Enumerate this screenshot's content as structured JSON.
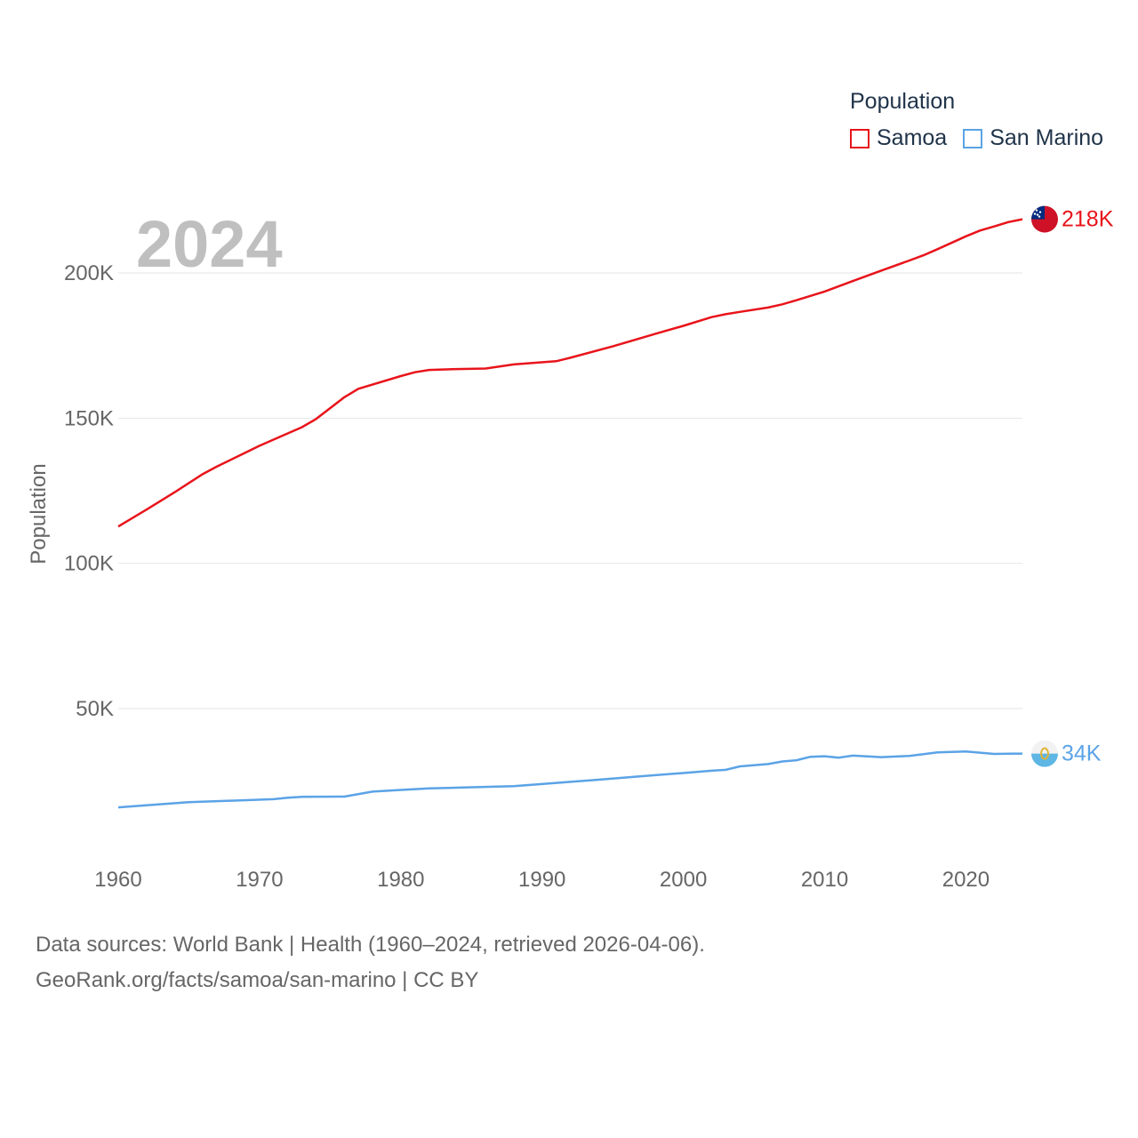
{
  "chart_data": {
    "type": "line",
    "ylabel": "Population",
    "year_label": "2024",
    "xlim": [
      1960,
      2024
    ],
    "ylim": [
      0,
      220000
    ],
    "x_ticks": [
      {
        "value": 1960,
        "label": "1960"
      },
      {
        "value": 1970,
        "label": "1970"
      },
      {
        "value": 1980,
        "label": "1980"
      },
      {
        "value": 1990,
        "label": "1990"
      },
      {
        "value": 2000,
        "label": "2000"
      },
      {
        "value": 2010,
        "label": "2010"
      },
      {
        "value": 2020,
        "label": "2020"
      }
    ],
    "y_ticks": [
      {
        "value": 50000,
        "label": "50K"
      },
      {
        "value": 100000,
        "label": "100K"
      },
      {
        "value": 150000,
        "label": "150K"
      },
      {
        "value": 200000,
        "label": "200K"
      }
    ],
    "legend": {
      "title": "Population",
      "items": [
        {
          "name": "Samoa",
          "color": "#e8141b"
        },
        {
          "name": "San Marino",
          "color": "#5ba3e6"
        }
      ]
    },
    "series": [
      {
        "name": "Samoa",
        "color": "#e8141b",
        "end_label": "218K",
        "flag": "samoa-flag",
        "points": [
          [
            1960,
            112700
          ],
          [
            1962,
            118500
          ],
          [
            1964,
            124500
          ],
          [
            1966,
            130800
          ],
          [
            1967,
            133400
          ],
          [
            1970,
            140500
          ],
          [
            1973,
            146900
          ],
          [
            1974,
            149700
          ],
          [
            1976,
            157200
          ],
          [
            1977,
            160100
          ],
          [
            1980,
            164500
          ],
          [
            1981,
            165800
          ],
          [
            1982,
            166600
          ],
          [
            1984,
            166900
          ],
          [
            1986,
            167100
          ],
          [
            1988,
            168500
          ],
          [
            1991,
            169600
          ],
          [
            1992,
            170800
          ],
          [
            1995,
            174700
          ],
          [
            1998,
            179000
          ],
          [
            2000,
            181800
          ],
          [
            2002,
            184800
          ],
          [
            2003,
            185800
          ],
          [
            2004,
            186600
          ],
          [
            2006,
            188100
          ],
          [
            2007,
            189200
          ],
          [
            2008,
            190600
          ],
          [
            2010,
            193600
          ],
          [
            2012,
            197200
          ],
          [
            2014,
            200800
          ],
          [
            2016,
            204300
          ],
          [
            2017,
            206100
          ],
          [
            2018,
            208200
          ],
          [
            2020,
            212600
          ],
          [
            2021,
            214600
          ],
          [
            2022,
            216000
          ],
          [
            2023,
            217500
          ],
          [
            2024,
            218500
          ]
        ]
      },
      {
        "name": "San Marino",
        "color": "#5ba3e6",
        "end_label": "34K",
        "flag": "san-marino-flag",
        "points": [
          [
            1960,
            16000
          ],
          [
            1962,
            16700
          ],
          [
            1965,
            17800
          ],
          [
            1968,
            18300
          ],
          [
            1971,
            18800
          ],
          [
            1972,
            19300
          ],
          [
            1973,
            19600
          ],
          [
            1976,
            19700
          ],
          [
            1978,
            21400
          ],
          [
            1980,
            22000
          ],
          [
            1982,
            22500
          ],
          [
            1985,
            22900
          ],
          [
            1988,
            23300
          ],
          [
            1991,
            24400
          ],
          [
            1994,
            25500
          ],
          [
            1997,
            26700
          ],
          [
            2000,
            27800
          ],
          [
            2002,
            28600
          ],
          [
            2003,
            28900
          ],
          [
            2004,
            30100
          ],
          [
            2006,
            30900
          ],
          [
            2007,
            31800
          ],
          [
            2008,
            32200
          ],
          [
            2009,
            33400
          ],
          [
            2010,
            33600
          ],
          [
            2011,
            33100
          ],
          [
            2012,
            33800
          ],
          [
            2014,
            33300
          ],
          [
            2016,
            33700
          ],
          [
            2018,
            34900
          ],
          [
            2020,
            35200
          ],
          [
            2022,
            34400
          ],
          [
            2024,
            34500
          ]
        ]
      }
    ]
  },
  "footer": {
    "line1": "Data sources: World Bank | Health (1960–2024, retrieved 2026-04-06).",
    "line2": "GeoRank.org/facts/samoa/san-marino | CC BY"
  }
}
